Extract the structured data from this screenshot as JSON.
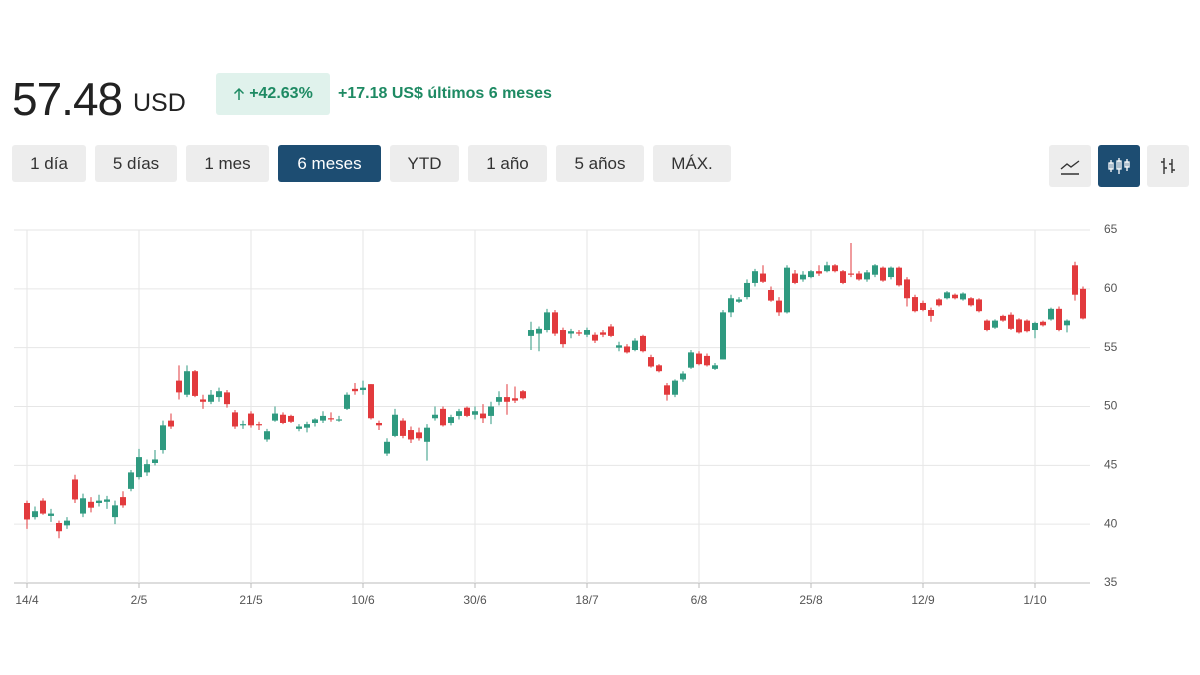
{
  "header": {
    "price": "57.48",
    "currency": "USD",
    "change_pct": "+42.63%",
    "change_abs": "+17.18 US$ últimos 6 meses"
  },
  "range_buttons": [
    {
      "label": "1 día"
    },
    {
      "label": "5 días"
    },
    {
      "label": "1 mes"
    },
    {
      "label": "6 meses",
      "selected": true
    },
    {
      "label": "YTD"
    },
    {
      "label": "1 año"
    },
    {
      "label": "5 años"
    },
    {
      "label": "MÁX."
    }
  ],
  "chart_data": {
    "type": "candlestick",
    "up_color": "#2f9a80",
    "down_color": "#e23a3d",
    "grid": true,
    "ylim": [
      35,
      65
    ],
    "yticks": [
      35,
      40,
      45,
      50,
      55,
      60,
      65
    ],
    "categories": [
      "14/4",
      null,
      null,
      null,
      null,
      null,
      null,
      null,
      null,
      null,
      null,
      null,
      null,
      null,
      "2/5",
      null,
      null,
      null,
      null,
      null,
      null,
      null,
      null,
      null,
      null,
      null,
      null,
      null,
      "21/5",
      null,
      null,
      null,
      null,
      null,
      null,
      null,
      null,
      null,
      null,
      null,
      null,
      null,
      "10/6",
      null,
      null,
      null,
      null,
      null,
      null,
      null,
      null,
      null,
      null,
      null,
      null,
      null,
      "30/6",
      null,
      null,
      null,
      null,
      null,
      null,
      null,
      null,
      null,
      null,
      null,
      null,
      null,
      "18/7",
      null,
      null,
      null,
      null,
      null,
      null,
      null,
      null,
      null,
      null,
      null,
      null,
      null,
      "6/8",
      null,
      null,
      null,
      null,
      null,
      null,
      null,
      null,
      null,
      null,
      null,
      null,
      null,
      "25/8",
      null,
      null,
      null,
      null,
      null,
      null,
      null,
      null,
      null,
      null,
      null,
      null,
      null,
      "12/9",
      null,
      null,
      null,
      null,
      null,
      null,
      null,
      null,
      null,
      null,
      null,
      null,
      null,
      "1/10",
      null,
      null,
      null,
      null,
      null,
      null
    ],
    "open": [
      41.8,
      40.6,
      42.0,
      40.7,
      40.1,
      39.9,
      43.8,
      40.9,
      41.9,
      41.8,
      41.9,
      40.6,
      42.3,
      43.0,
      44.0,
      44.4,
      45.2,
      46.3,
      48.8,
      52.2,
      51.0,
      53.0,
      50.6,
      50.4,
      50.8,
      51.2,
      49.5,
      48.4,
      49.4,
      48.5,
      47.2,
      48.8,
      49.3,
      49.2,
      48.1,
      48.2,
      48.6,
      48.8,
      49.0,
      48.8,
      49.8,
      51.5,
      51.4,
      51.9,
      48.6,
      46.0,
      47.5,
      48.8,
      48.0,
      47.8,
      47.0,
      49.0,
      49.8,
      48.6,
      49.2,
      49.9,
      49.3,
      49.4,
      49.2,
      50.4,
      50.8,
      50.7,
      51.3,
      56.0,
      56.2,
      56.5,
      58.0,
      56.5,
      56.2,
      56.3,
      56.1,
      56.1,
      56.3,
      56.8,
      55.0,
      55.1,
      54.8,
      56.0,
      54.2,
      53.5,
      51.8,
      51.0,
      52.3,
      53.3,
      54.5,
      54.3,
      53.2,
      54.0,
      58.0,
      58.9,
      59.3,
      60.5,
      61.3,
      59.9,
      59.0,
      58.0,
      61.3,
      60.8,
      61.0,
      61.5,
      61.5,
      62.0,
      61.5,
      61.3,
      61.3,
      60.8,
      61.2,
      61.8,
      61.0,
      61.8,
      60.8,
      59.3,
      58.8,
      58.2,
      59.1,
      59.2,
      59.5,
      59.1,
      59.2,
      59.1,
      57.3,
      56.7,
      57.7,
      57.8,
      57.4,
      57.3,
      56.5,
      57.2,
      57.4,
      58.3,
      56.9,
      62.0,
      60.0
    ],
    "high": [
      42.0,
      41.5,
      42.2,
      41.3,
      40.3,
      40.6,
      44.2,
      42.6,
      42.3,
      42.5,
      42.4,
      42.0,
      42.8,
      44.6,
      46.4,
      45.5,
      46.3,
      48.8,
      49.4,
      53.5,
      53.5,
      53.1,
      51.0,
      51.4,
      51.6,
      51.4,
      49.7,
      48.8,
      49.6,
      48.7,
      48.1,
      50.0,
      49.5,
      49.3,
      48.5,
      48.7,
      49.0,
      49.6,
      49.5,
      49.2,
      51.2,
      52.0,
      52.2,
      51.9,
      48.8,
      47.3,
      49.8,
      49.0,
      48.3,
      48.2,
      48.5,
      50.0,
      50.0,
      49.3,
      49.8,
      50.0,
      50.0,
      50.2,
      50.4,
      51.3,
      51.9,
      51.7,
      51.4,
      57.2,
      56.8,
      58.3,
      58.2,
      56.7,
      56.6,
      56.5,
      56.7,
      56.3,
      56.5,
      57.0,
      55.5,
      55.3,
      55.8,
      56.1,
      54.4,
      53.6,
      52.0,
      52.3,
      53.0,
      54.8,
      54.7,
      54.5,
      53.7,
      58.2,
      59.5,
      59.3,
      60.8,
      61.7,
      62.0,
      60.2,
      59.3,
      62.0,
      61.6,
      61.5,
      61.6,
      62.0,
      62.3,
      62.1,
      61.6,
      63.9,
      61.5,
      61.6,
      62.1,
      61.9,
      61.9,
      61.9,
      61.0,
      59.5,
      59.0,
      58.4,
      59.2,
      59.8,
      59.6,
      59.7,
      59.3,
      59.2,
      57.4,
      57.4,
      57.8,
      58.0,
      57.5,
      57.4,
      57.2,
      57.3,
      58.4,
      58.5,
      57.4,
      62.3,
      60.2
    ],
    "low": [
      39.6,
      40.4,
      40.8,
      40.2,
      38.8,
      39.6,
      41.8,
      40.6,
      41.0,
      41.5,
      41.3,
      40.0,
      41.4,
      42.8,
      43.8,
      44.1,
      45.0,
      46.0,
      48.1,
      50.6,
      50.8,
      50.8,
      49.8,
      50.2,
      50.4,
      49.9,
      48.1,
      48.1,
      48.2,
      48.0,
      47.0,
      48.7,
      48.5,
      48.6,
      47.9,
      47.8,
      48.3,
      48.6,
      48.7,
      48.7,
      49.7,
      51.0,
      51.0,
      48.9,
      48.0,
      45.8,
      47.4,
      47.3,
      46.9,
      47.1,
      45.4,
      48.8,
      48.3,
      48.4,
      48.9,
      49.1,
      48.9,
      48.6,
      48.5,
      50.1,
      49.3,
      50.3,
      50.6,
      54.8,
      54.7,
      56.3,
      56.0,
      55.0,
      55.8,
      56.0,
      55.9,
      55.4,
      55.9,
      55.9,
      54.7,
      54.5,
      54.7,
      54.6,
      53.3,
      52.9,
      50.5,
      50.8,
      52.1,
      53.2,
      53.5,
      53.4,
      53.1,
      54.0,
      57.6,
      58.8,
      59.1,
      60.2,
      60.5,
      58.9,
      57.7,
      57.9,
      60.4,
      60.6,
      60.9,
      61.1,
      61.4,
      61.4,
      60.4,
      61.0,
      60.7,
      60.6,
      61.0,
      60.6,
      60.8,
      60.2,
      58.5,
      58.0,
      58.1,
      57.2,
      58.5,
      59.1,
      59.1,
      59.0,
      58.5,
      58.0,
      56.4,
      56.6,
      57.2,
      56.5,
      56.2,
      56.3,
      55.8,
      56.8,
      57.3,
      56.4,
      56.3,
      59.0,
      57.4
    ],
    "close": [
      40.4,
      41.1,
      40.9,
      40.9,
      39.4,
      40.3,
      42.1,
      42.2,
      41.4,
      42.0,
      42.1,
      41.6,
      41.6,
      44.4,
      45.7,
      45.1,
      45.5,
      48.4,
      48.3,
      51.2,
      53.0,
      50.9,
      50.4,
      51.0,
      51.3,
      50.2,
      48.3,
      48.5,
      48.4,
      48.4,
      47.9,
      49.4,
      48.6,
      48.7,
      48.3,
      48.5,
      48.9,
      49.2,
      48.9,
      48.9,
      51.0,
      51.3,
      51.6,
      49.0,
      48.4,
      47.0,
      49.3,
      47.5,
      47.2,
      47.3,
      48.2,
      49.3,
      48.4,
      49.1,
      49.6,
      49.2,
      49.6,
      49.0,
      50.0,
      50.8,
      50.4,
      50.5,
      50.7,
      56.5,
      56.6,
      58.0,
      56.2,
      55.3,
      56.4,
      56.2,
      56.5,
      55.6,
      56.1,
      56.0,
      55.2,
      54.6,
      55.6,
      54.7,
      53.4,
      53.0,
      51.0,
      52.2,
      52.8,
      54.6,
      53.6,
      53.5,
      53.5,
      58.0,
      59.2,
      59.1,
      60.5,
      61.5,
      60.6,
      59.0,
      58.0,
      61.8,
      60.5,
      61.2,
      61.5,
      61.3,
      62.0,
      61.5,
      60.5,
      61.2,
      60.8,
      61.4,
      62.0,
      60.7,
      61.8,
      60.3,
      59.2,
      58.1,
      58.2,
      57.7,
      58.6,
      59.7,
      59.2,
      59.6,
      58.6,
      58.1,
      56.5,
      57.3,
      57.3,
      56.6,
      56.3,
      56.4,
      57.1,
      56.9,
      58.3,
      56.5,
      57.3,
      59.5,
      57.48
    ]
  }
}
